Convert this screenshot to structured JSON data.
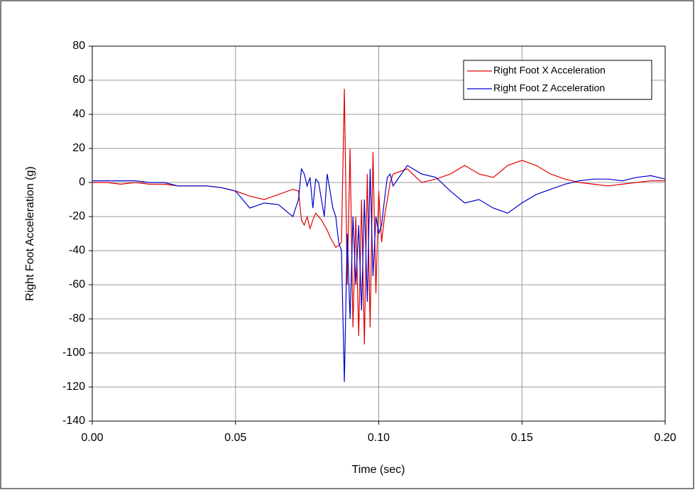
{
  "chart_data": {
    "type": "line",
    "xlabel": "Time (sec)",
    "ylabel": "Right Foot Acceleration (g)",
    "x": [
      0,
      0.005,
      0.01,
      0.015,
      0.02,
      0.025,
      0.03,
      0.035,
      0.04,
      0.045,
      0.05,
      0.055,
      0.06,
      0.065,
      0.07,
      0.072,
      0.073,
      0.074,
      0.075,
      0.076,
      0.077,
      0.078,
      0.079,
      0.08,
      0.081,
      0.082,
      0.083,
      0.084,
      0.085,
      0.086,
      0.087,
      0.088,
      0.089,
      0.09,
      0.091,
      0.092,
      0.093,
      0.094,
      0.095,
      0.096,
      0.097,
      0.098,
      0.099,
      0.1,
      0.101,
      0.102,
      0.103,
      0.104,
      0.105,
      0.11,
      0.115,
      0.12,
      0.125,
      0.13,
      0.135,
      0.14,
      0.145,
      0.15,
      0.155,
      0.16,
      0.165,
      0.17,
      0.175,
      0.18,
      0.185,
      0.19,
      0.195,
      0.2
    ],
    "series": [
      {
        "name": "Right Foot X Acceleration",
        "color": "#e00000",
        "values": [
          0,
          0,
          -1,
          0,
          -1,
          -1,
          -2,
          -2,
          -2,
          -3,
          -5,
          -8,
          -10,
          -7,
          -4,
          -5,
          -22,
          -25,
          -20,
          -27,
          -22,
          -18,
          -20,
          -22,
          -25,
          -28,
          -32,
          -35,
          -38,
          -37,
          -35,
          55,
          -60,
          20,
          -85,
          -20,
          -90,
          -10,
          -95,
          5,
          -85,
          18,
          -65,
          -5,
          -35,
          -20,
          -10,
          0,
          5,
          8,
          0,
          2,
          5,
          10,
          5,
          3,
          10,
          13,
          10,
          5,
          2,
          0,
          -1,
          -2,
          -1,
          0,
          1,
          1
        ]
      },
      {
        "name": "Right Foot Z Acceleration",
        "color": "#0000cc",
        "values": [
          1,
          1,
          1,
          1,
          0,
          0,
          -2,
          -2,
          -2,
          -3,
          -5,
          -15,
          -12,
          -13,
          -20,
          -10,
          8,
          5,
          -2,
          3,
          -15,
          2,
          0,
          -10,
          -20,
          5,
          -5,
          -15,
          -20,
          -35,
          -40,
          -117,
          -30,
          -80,
          -20,
          -60,
          -25,
          -75,
          -10,
          -70,
          8,
          -55,
          -20,
          -30,
          -25,
          -10,
          3,
          5,
          -2,
          10,
          5,
          3,
          -5,
          -12,
          -10,
          -15,
          -18,
          -12,
          -7,
          -4,
          -1,
          1,
          2,
          2,
          1,
          3,
          4,
          2
        ]
      }
    ],
    "xlim": [
      0,
      0.2
    ],
    "xticks": [
      {
        "value": 0,
        "label": "0.00"
      },
      0.05,
      {
        "value": 0.1,
        "label": "0.10"
      },
      0.15,
      {
        "value": 0.2,
        "label": "0.20"
      }
    ],
    "ylim": [
      -140,
      80
    ],
    "yticks": [
      -140,
      -120,
      -100,
      -80,
      -60,
      -40,
      -20,
      0,
      20,
      40,
      60,
      80
    ],
    "grid": true,
    "legend": "upper right"
  }
}
